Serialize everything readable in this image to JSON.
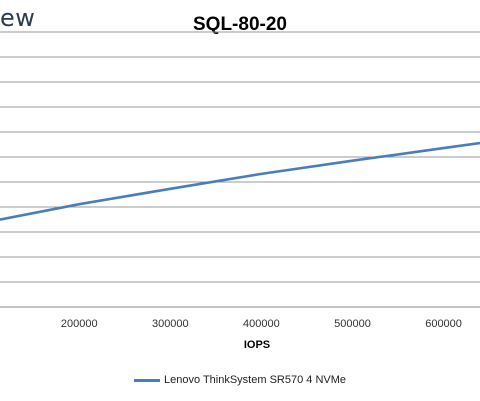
{
  "logo_text": "ew",
  "colors": {
    "series": "#4a7ebb",
    "grid": "#999999",
    "axis_text": "#333333"
  },
  "chart_data": {
    "type": "line",
    "title": "SQL-80-20",
    "xlabel": "IOPS",
    "ylabel": "",
    "xlim": [
      113000,
      640000
    ],
    "x_ticks": [
      200000,
      300000,
      400000,
      500000,
      600000
    ],
    "y_gridlines": 12,
    "grid": true,
    "legend_position": "bottom",
    "series": [
      {
        "name": "Lenovo ThinkSystem SR570 4 NVMe",
        "color": "#4a7ebb",
        "x": [
          113000,
          200000,
          300000,
          400000,
          500000,
          600000,
          640000
        ],
        "y": [
          0.318,
          0.374,
          0.43,
          0.484,
          0.532,
          0.578,
          0.596
        ]
      }
    ]
  }
}
